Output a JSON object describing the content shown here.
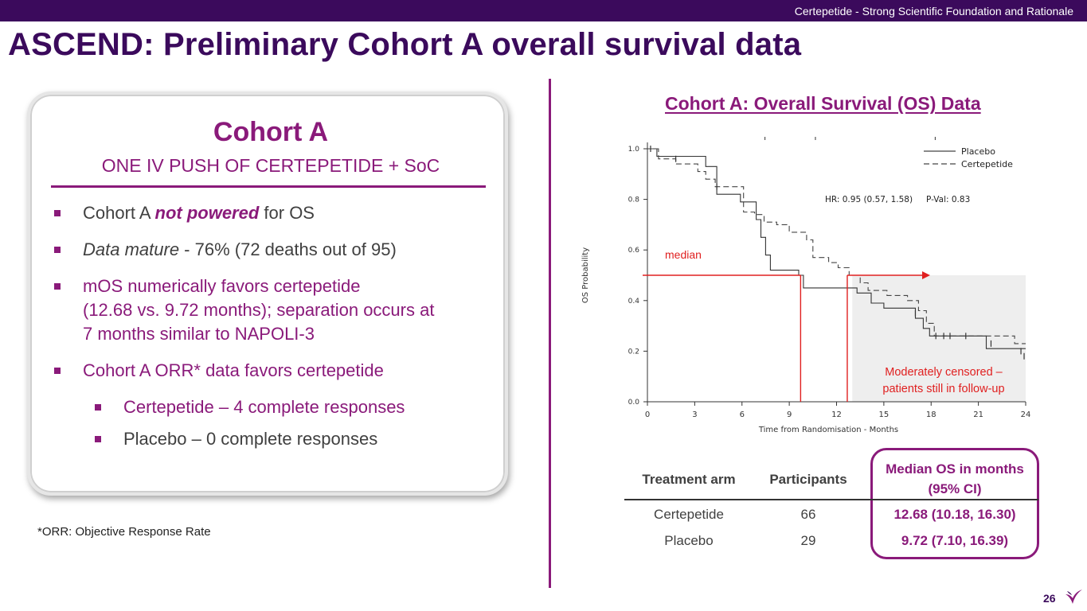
{
  "header": {
    "banner": "Certepetide - Strong Scientific Foundation and Rationale",
    "title": "ASCEND: Preliminary Cohort A overall survival data"
  },
  "card": {
    "title": "Cohort A",
    "subtitle": "ONE IV PUSH OF CERTEPETIDE + SoC",
    "b1_pre": "Cohort A ",
    "b1_em": "not powered",
    "b1_post": " for OS",
    "b2_em": "Data mature",
    "b2_post": " - 76% (72 deaths out of 95)",
    "b3_line1": "mOS numerically favors certepetide",
    "b3_line2": "(12.68 vs. 9.72 months); separation occurs at",
    "b3_line3": "7 months similar to NAPOLI-3",
    "b4": "Cohort A ORR* data favors certepetide",
    "b4a": "Certepetide – 4 complete responses",
    "b4b": "Placebo – 0 complete responses"
  },
  "footnote": "*ORR: Objective Response Rate",
  "chart_title": "Cohort A: Overall Survival (OS) Data",
  "chart_data": {
    "type": "line",
    "title": "Cohort A: Overall Survival (OS) Data",
    "xlabel": "Time from Randomisation - Months",
    "ylabel": "OS Probability",
    "xlim": [
      0,
      24
    ],
    "ylim": [
      0,
      1
    ],
    "xticks": [
      0,
      3,
      6,
      9,
      12,
      15,
      18,
      21,
      24
    ],
    "yticks": [
      "0.0",
      "0.2",
      "0.4",
      "0.6",
      "0.8",
      "1.0"
    ],
    "series": [
      {
        "name": "Placebo",
        "style": "solid",
        "points": [
          [
            0,
            1.0
          ],
          [
            0.6,
            1.0
          ],
          [
            0.6,
            0.97
          ],
          [
            3.7,
            0.97
          ],
          [
            3.7,
            0.93
          ],
          [
            4.4,
            0.93
          ],
          [
            4.4,
            0.82
          ],
          [
            5.9,
            0.82
          ],
          [
            5.9,
            0.79
          ],
          [
            6.9,
            0.79
          ],
          [
            6.9,
            0.72
          ],
          [
            7.2,
            0.72
          ],
          [
            7.2,
            0.65
          ],
          [
            7.5,
            0.65
          ],
          [
            7.5,
            0.58
          ],
          [
            7.8,
            0.58
          ],
          [
            7.8,
            0.52
          ],
          [
            9.6,
            0.52
          ],
          [
            9.6,
            0.5
          ],
          [
            9.9,
            0.5
          ],
          [
            9.9,
            0.45
          ],
          [
            13.3,
            0.45
          ],
          [
            13.3,
            0.43
          ],
          [
            14.2,
            0.43
          ],
          [
            14.2,
            0.39
          ],
          [
            15.0,
            0.39
          ],
          [
            15.0,
            0.37
          ],
          [
            17.0,
            0.37
          ],
          [
            17.0,
            0.33
          ],
          [
            17.5,
            0.33
          ],
          [
            17.5,
            0.29
          ],
          [
            17.9,
            0.29
          ],
          [
            17.9,
            0.26
          ],
          [
            21.5,
            0.26
          ],
          [
            21.5,
            0.21
          ],
          [
            24.0,
            0.21
          ]
        ]
      },
      {
        "name": "Certepetide",
        "style": "dashed",
        "points": [
          [
            0,
            1.0
          ],
          [
            0.7,
            1.0
          ],
          [
            0.7,
            0.96
          ],
          [
            1.8,
            0.96
          ],
          [
            1.8,
            0.94
          ],
          [
            3.2,
            0.94
          ],
          [
            3.2,
            0.91
          ],
          [
            3.7,
            0.91
          ],
          [
            3.7,
            0.88
          ],
          [
            4.3,
            0.88
          ],
          [
            4.3,
            0.85
          ],
          [
            6.1,
            0.85
          ],
          [
            6.1,
            0.75
          ],
          [
            6.8,
            0.75
          ],
          [
            6.8,
            0.74
          ],
          [
            7.4,
            0.74
          ],
          [
            7.4,
            0.71
          ],
          [
            8.2,
            0.71
          ],
          [
            8.2,
            0.7
          ],
          [
            9.0,
            0.7
          ],
          [
            9.0,
            0.67
          ],
          [
            10.1,
            0.67
          ],
          [
            10.1,
            0.64
          ],
          [
            10.5,
            0.64
          ],
          [
            10.5,
            0.57
          ],
          [
            11.5,
            0.57
          ],
          [
            11.5,
            0.55
          ],
          [
            12.1,
            0.55
          ],
          [
            12.1,
            0.53
          ],
          [
            12.8,
            0.53
          ],
          [
            12.8,
            0.5
          ],
          [
            13.5,
            0.5
          ],
          [
            13.5,
            0.47
          ],
          [
            14.0,
            0.47
          ],
          [
            14.0,
            0.44
          ],
          [
            15.2,
            0.44
          ],
          [
            15.2,
            0.42
          ],
          [
            16.5,
            0.42
          ],
          [
            16.5,
            0.4
          ],
          [
            17.2,
            0.4
          ],
          [
            17.2,
            0.36
          ],
          [
            17.7,
            0.36
          ],
          [
            17.7,
            0.31
          ],
          [
            18.2,
            0.31
          ],
          [
            18.2,
            0.26
          ],
          [
            23.3,
            0.26
          ],
          [
            23.3,
            0.23
          ],
          [
            24.0,
            0.23
          ]
        ]
      }
    ],
    "hr_text": "HR: 0.95 (0.57, 1.58)",
    "pval_text": "P-Val:  0.83",
    "median_label": "median",
    "median_y": 0.5,
    "median_x": [
      9.72,
      12.68
    ],
    "censored_note_line1": "Moderately censored –",
    "censored_note_line2": "patients still in follow-up",
    "censored_region_x": [
      13.0,
      24.0
    ],
    "annotation_color": "#e02020"
  },
  "table": {
    "headers": {
      "arm": "Treatment arm",
      "participants": "Participants",
      "median_line1": "Median OS in months",
      "median_line2": "(95% CI)"
    },
    "rows": [
      {
        "arm": "Certepetide",
        "participants": "66",
        "median": "12.68 (10.18, 16.30)"
      },
      {
        "arm": "Placebo",
        "participants": "29",
        "median": "9.72 (7.10, 16.39)"
      }
    ]
  },
  "page_number": "26",
  "colors": {
    "brand_dark": "#3b0a5c",
    "accent": "#8a1a7a",
    "annotation": "#e02020"
  }
}
